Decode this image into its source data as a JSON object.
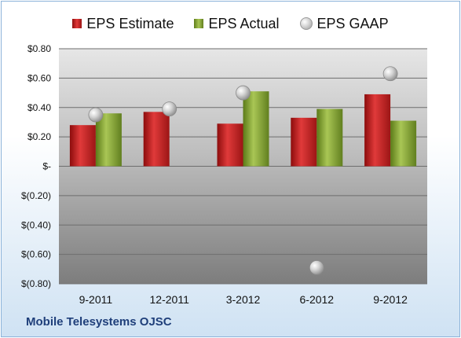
{
  "chart_data": {
    "type": "bar",
    "categories": [
      "9-2011",
      "12-2011",
      "3-2012",
      "6-2012",
      "9-2012"
    ],
    "series": [
      {
        "name": "EPS Estimate",
        "type": "bar",
        "color": "#c82020",
        "values": [
          0.28,
          0.37,
          0.29,
          0.33,
          0.49
        ]
      },
      {
        "name": "EPS Actual",
        "type": "bar",
        "color": "#8db03a",
        "values": [
          0.36,
          null,
          0.51,
          0.39,
          0.31
        ]
      },
      {
        "name": "EPS GAAP",
        "type": "scatter",
        "color": "#c0c0c0",
        "values": [
          0.35,
          0.39,
          0.5,
          -0.69,
          0.63
        ]
      }
    ],
    "ylim": [
      -0.8,
      0.8
    ],
    "yticks": [
      0.8,
      0.6,
      0.4,
      0.2,
      0,
      -0.2,
      -0.4,
      -0.6,
      -0.8
    ],
    "ytick_labels": [
      "$0.80",
      "$0.60",
      "$0.40",
      "$0.20",
      "$-",
      "$(0.20)",
      "$(0.40)",
      "$(0.60)",
      "$(0.80)"
    ],
    "grid": true,
    "legend_position": "top"
  },
  "footer": {
    "company": "Mobile Telesystems OJSC"
  }
}
